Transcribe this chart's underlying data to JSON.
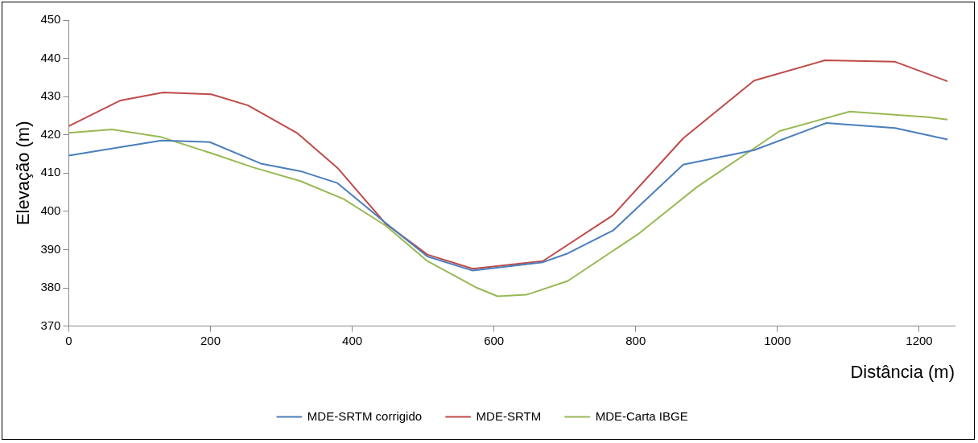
{
  "chart_data": {
    "type": "line",
    "xlabel": "Distância (m)",
    "ylabel": "Elevação (m)",
    "xlim": [
      0,
      1250
    ],
    "xticks": [
      0,
      200,
      400,
      600,
      800,
      1000,
      1200
    ],
    "ylim": [
      370,
      450
    ],
    "yticks": [
      370,
      380,
      390,
      400,
      410,
      420,
      430,
      440,
      450
    ],
    "grid": false,
    "legend": "bottom",
    "marker": "none",
    "series": [
      {
        "name": "MDE-SRTM corrigido",
        "color": "#4a7ebb",
        "x": [
          0,
          73,
          131,
          199,
          271,
          327,
          379,
          447,
          506,
          570,
          669,
          704,
          768,
          867,
          967,
          1069,
          1166,
          1240
        ],
        "values": [
          414.6,
          416.8,
          418.5,
          418.1,
          412.5,
          410.5,
          407.4,
          397,
          388.2,
          384.5,
          386.7,
          389,
          395,
          412.2,
          416,
          423.1,
          421.8,
          418.8
        ]
      },
      {
        "name": "MDE-SRTM",
        "color": "#be4b48",
        "x": [
          0,
          37,
          73,
          133,
          201,
          253,
          322,
          379,
          447,
          506,
          570,
          669,
          768,
          867,
          967,
          1067,
          1166,
          1240
        ],
        "values": [
          422.3,
          425.7,
          429,
          431.1,
          430.6,
          427.7,
          420.5,
          411.4,
          396.8,
          388.7,
          385,
          387,
          399,
          419.1,
          434.2,
          439.5,
          439.1,
          434
        ]
      },
      {
        "name": "MDE-Carta IBGE",
        "color": "#98b954",
        "x": [
          0,
          61,
          131,
          201,
          260,
          327,
          388,
          447,
          506,
          576,
          605,
          646,
          704,
          803,
          886,
          1003,
          1102,
          1213,
          1240
        ],
        "values": [
          420.5,
          421.4,
          419.4,
          415.2,
          411.5,
          407.9,
          403.2,
          396.3,
          387,
          380,
          377.8,
          378.2,
          381.8,
          394,
          406.3,
          421,
          426.1,
          424.6,
          424
        ]
      }
    ]
  }
}
